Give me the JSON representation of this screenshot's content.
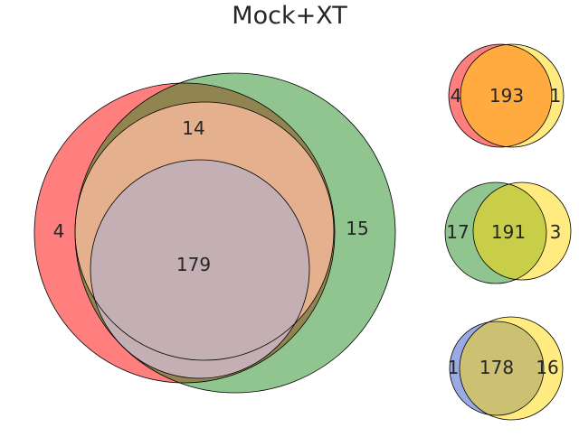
{
  "title": "Mock+XT",
  "colors": {
    "red": "#ff0000",
    "green": "#228b22",
    "yellow": "#ffd700",
    "blue": "#3355cc",
    "orange_overlap": "#e5b08d",
    "triple_overlap": "#c4b0b4",
    "stroke": "#000000"
  },
  "main_venn": {
    "labels": {
      "red_only": "4",
      "overlap_outer": "14",
      "green_only": "15",
      "core": "179"
    }
  },
  "small_venns": [
    {
      "left_only": "4",
      "overlap": "193",
      "right_only": "1"
    },
    {
      "left_only": "17",
      "overlap": "191",
      "right_only": "3"
    },
    {
      "left_only": "1",
      "overlap": "178",
      "right_only": "16"
    }
  ]
}
